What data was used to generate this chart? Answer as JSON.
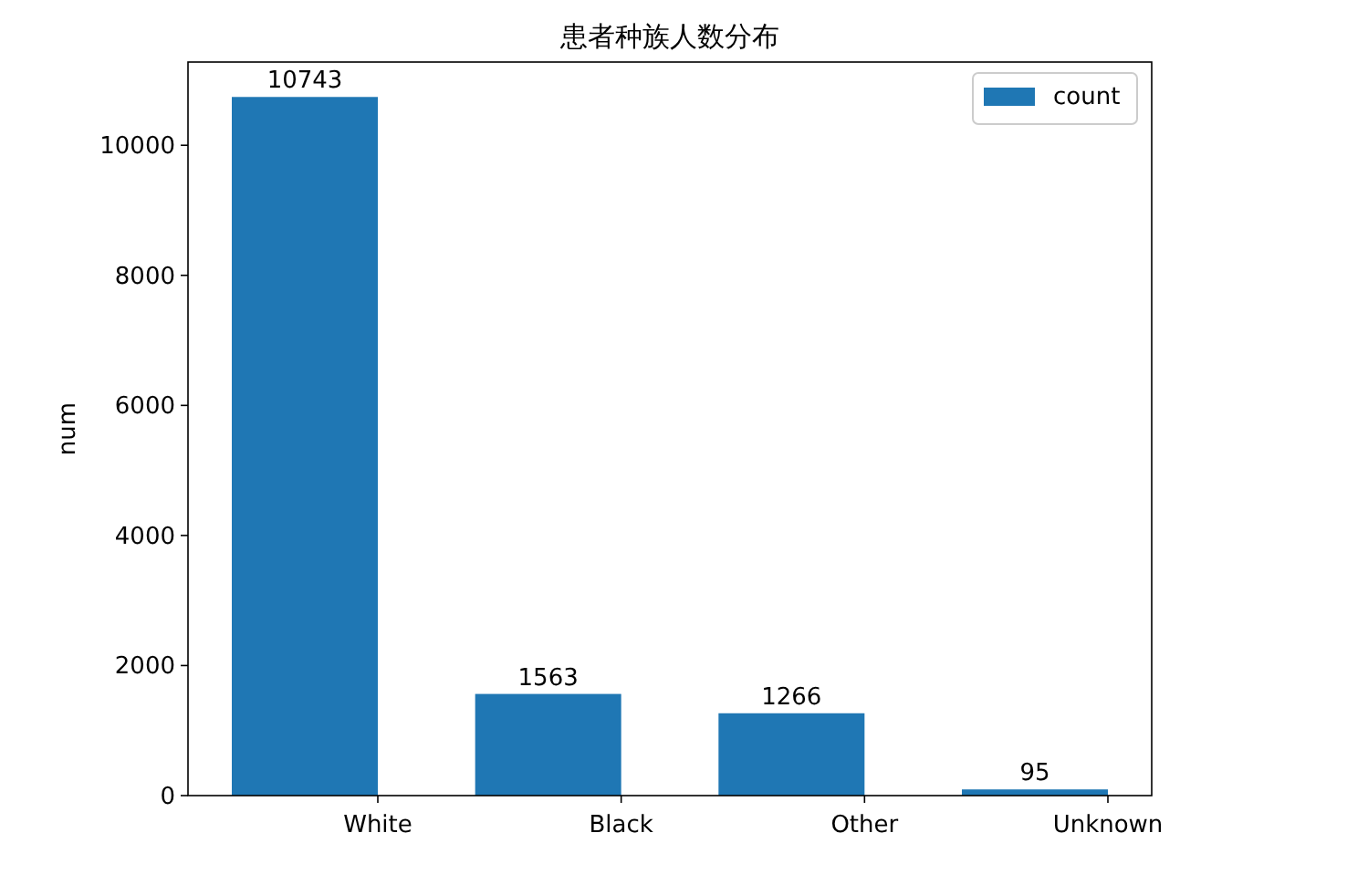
{
  "chart_data": {
    "type": "bar",
    "title": "患者种族人数分布",
    "ylabel": "num",
    "categories": [
      "White",
      "Black",
      "Other",
      "Unknown"
    ],
    "series": [
      {
        "name": "count",
        "color": "#1f77b4",
        "values": [
          10743,
          1563,
          1266,
          95
        ]
      }
    ],
    "ylim": [
      0,
      11280
    ],
    "yticks": [
      0,
      2000,
      4000,
      6000,
      8000,
      10000
    ],
    "data_labels": true,
    "legend": "top right",
    "grid": false
  }
}
